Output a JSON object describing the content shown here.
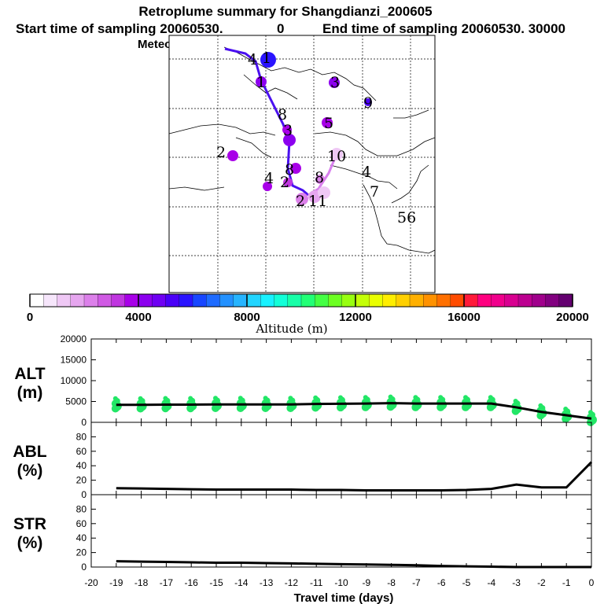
{
  "header": {
    "title": "Retroplume summary for Shangdianzi_200605",
    "start_label": "Start time of sampling 20060530.",
    "start_value": "0",
    "end_label": "End time of sampling 20060530. 30000",
    "met_label": "Meteorological data used is ECMWF"
  },
  "colorbar": {
    "label": "Altitude (m)",
    "ticks": [
      "0",
      "4000",
      "8000",
      "12000",
      "16000",
      "20000"
    ],
    "colors": [
      "#ffffff",
      "#f6e6fb",
      "#efc8f5",
      "#e6a6ef",
      "#dc80ea",
      "#d05ae4",
      "#c036e0",
      "#a800e8",
      "#8c00ef",
      "#6f00f3",
      "#4a00f7",
      "#2a14ff",
      "#1746ff",
      "#1e6bff",
      "#2391ff",
      "#26b4ff",
      "#22d5ff",
      "#18f2ff",
      "#12ffd8",
      "#18ffa8",
      "#22ff76",
      "#44ff44",
      "#6cff22",
      "#98ff10",
      "#c4ff08",
      "#eaff00",
      "#ffee00",
      "#ffd000",
      "#ffb000",
      "#ff9200",
      "#ff7000",
      "#ff4c00",
      "#ff1a3a",
      "#ff0080",
      "#f0008c",
      "#d80090",
      "#bc0090",
      "#a0008c",
      "#820080",
      "#640070"
    ]
  },
  "map": {
    "labels": [
      {
        "text": "1",
        "id": "a"
      },
      {
        "text": "4",
        "id": "b"
      },
      {
        "text": "1",
        "id": "c"
      },
      {
        "text": "3",
        "id": "d"
      },
      {
        "text": "9",
        "id": "e"
      },
      {
        "text": "5",
        "id": "f"
      },
      {
        "text": "8",
        "id": "g"
      },
      {
        "text": "3",
        "id": "h"
      },
      {
        "text": "2",
        "id": "i"
      },
      {
        "text": "8",
        "id": "j"
      },
      {
        "text": "10",
        "id": "k"
      },
      {
        "text": "4",
        "id": "l"
      },
      {
        "text": "4",
        "id": "m"
      },
      {
        "text": "2",
        "id": "n"
      },
      {
        "text": "8",
        "id": "o"
      },
      {
        "text": "2",
        "id": "p"
      },
      {
        "text": "11",
        "id": "q"
      },
      {
        "text": "7",
        "id": "r"
      },
      {
        "text": "56",
        "id": "s"
      }
    ]
  },
  "chart_data": [
    {
      "type": "scatter",
      "name": "ALT",
      "ylabel": "ALT (m)",
      "ylabel_line1": "ALT",
      "ylabel_line2": "(m)",
      "ylim": [
        0,
        20000
      ],
      "yticks": [
        "0",
        "5000",
        "10000",
        "15000",
        "20000"
      ],
      "x": [
        -19,
        -18,
        -17,
        -16,
        -15,
        -14,
        -13,
        -12,
        -11,
        -10,
        -9,
        -8,
        -7,
        -6,
        -5,
        -4,
        -3,
        -2,
        -1,
        0
      ],
      "mean_line": [
        4200,
        4200,
        4250,
        4250,
        4300,
        4300,
        4300,
        4300,
        4400,
        4450,
        4500,
        4600,
        4500,
        4500,
        4500,
        4500,
        3600,
        2500,
        1700,
        900
      ],
      "points_color": "#22e666"
    },
    {
      "type": "line",
      "name": "ABL",
      "ylabel_line1": "ABL",
      "ylabel_line2": "(%)",
      "ylim": [
        0,
        100
      ],
      "yticks": [
        "0",
        "20",
        "40",
        "60",
        "80"
      ],
      "x": [
        -19,
        -18,
        -17,
        -16,
        -15,
        -14,
        -13,
        -12,
        -11,
        -10,
        -9,
        -8,
        -7,
        -6,
        -5,
        -4,
        -3,
        -2,
        -1,
        0
      ],
      "values": [
        9,
        8.5,
        8,
        7.5,
        7,
        7,
        7,
        7,
        6.5,
        6.5,
        6,
        6,
        6,
        6,
        6.5,
        8,
        14,
        10,
        10,
        45
      ]
    },
    {
      "type": "line",
      "name": "STR",
      "ylabel_line1": "STR",
      "ylabel_line2": "(%)",
      "ylim": [
        0,
        100
      ],
      "yticks": [
        "0",
        "20",
        "40",
        "60",
        "80"
      ],
      "x": [
        -19,
        -18,
        -17,
        -16,
        -15,
        -14,
        -13,
        -12,
        -11,
        -10,
        -9,
        -8,
        -7,
        -6,
        -5,
        -4,
        -3,
        -2,
        -1,
        0
      ],
      "values": [
        8,
        7.5,
        7,
        6.5,
        6,
        6,
        5.5,
        5,
        4.5,
        4,
        3.5,
        3,
        2.5,
        1.5,
        1,
        0.5,
        0,
        0,
        0,
        0
      ],
      "xlabel": "Travel time (days)",
      "xticks": [
        "-20",
        "-19",
        "-18",
        "-17",
        "-16",
        "-15",
        "-14",
        "-13",
        "-12",
        "-11",
        "-10",
        "-9",
        "-8",
        "-7",
        "-6",
        "-5",
        "-4",
        "-3",
        "-2",
        "-1",
        "0"
      ]
    }
  ]
}
